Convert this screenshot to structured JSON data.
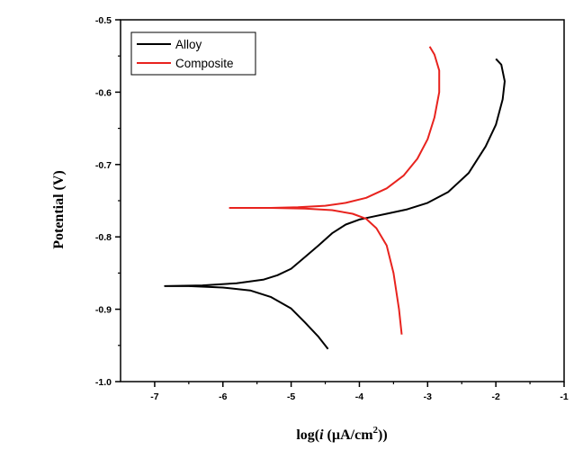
{
  "chart_data": {
    "type": "line",
    "title": "",
    "xlabel": {
      "prefix": "log(",
      "italic": "i",
      "mid": " (µA/cm",
      "sup": "2",
      "suffix": "))"
    },
    "ylabel": "Potential (V)",
    "xlim": [
      -7.5,
      -1
    ],
    "ylim": [
      -1.0,
      -0.5
    ],
    "x_ticks": [
      "-7",
      "-6",
      "-5",
      "-4",
      "-3",
      "-2",
      "-1"
    ],
    "x_tick_values": [
      -7,
      -6,
      -5,
      -4,
      -3,
      -2,
      -1
    ],
    "y_ticks": [
      "-0.5",
      "-0.6",
      "-0.7",
      "-0.8",
      "-0.9",
      "-1.0"
    ],
    "y_tick_values": [
      -0.5,
      -0.6,
      -0.7,
      -0.8,
      -0.9,
      -1.0
    ],
    "grid": false,
    "legend_position": "top-left",
    "series": [
      {
        "name": "Alloy",
        "color": "#000000",
        "points": [
          [
            -4.46,
            -0.955
          ],
          [
            -4.6,
            -0.938
          ],
          [
            -4.8,
            -0.918
          ],
          [
            -5.0,
            -0.899
          ],
          [
            -5.3,
            -0.883
          ],
          [
            -5.6,
            -0.874
          ],
          [
            -6.0,
            -0.87
          ],
          [
            -6.5,
            -0.868
          ],
          [
            -6.85,
            -0.868
          ],
          [
            -6.3,
            -0.867
          ],
          [
            -5.8,
            -0.864
          ],
          [
            -5.4,
            -0.859
          ],
          [
            -5.2,
            -0.853
          ],
          [
            -5.0,
            -0.844
          ],
          [
            -4.8,
            -0.828
          ],
          [
            -4.6,
            -0.812
          ],
          [
            -4.4,
            -0.795
          ],
          [
            -4.2,
            -0.783
          ],
          [
            -4.0,
            -0.776
          ],
          [
            -3.8,
            -0.772
          ],
          [
            -3.6,
            -0.768
          ],
          [
            -3.3,
            -0.762
          ],
          [
            -3.0,
            -0.753
          ],
          [
            -2.7,
            -0.738
          ],
          [
            -2.4,
            -0.712
          ],
          [
            -2.15,
            -0.675
          ],
          [
            -2.0,
            -0.645
          ],
          [
            -1.9,
            -0.61
          ],
          [
            -1.87,
            -0.585
          ],
          [
            -1.92,
            -0.562
          ],
          [
            -2.0,
            -0.554
          ]
        ]
      },
      {
        "name": "Composite",
        "color": "#e8231e",
        "points": [
          [
            -3.38,
            -0.935
          ],
          [
            -3.42,
            -0.9
          ],
          [
            -3.5,
            -0.85
          ],
          [
            -3.6,
            -0.812
          ],
          [
            -3.75,
            -0.788
          ],
          [
            -3.9,
            -0.775
          ],
          [
            -4.1,
            -0.768
          ],
          [
            -4.4,
            -0.763
          ],
          [
            -4.8,
            -0.761
          ],
          [
            -5.3,
            -0.76
          ],
          [
            -5.9,
            -0.76
          ],
          [
            -5.3,
            -0.76
          ],
          [
            -4.9,
            -0.759
          ],
          [
            -4.5,
            -0.757
          ],
          [
            -4.2,
            -0.753
          ],
          [
            -3.9,
            -0.746
          ],
          [
            -3.6,
            -0.733
          ],
          [
            -3.35,
            -0.715
          ],
          [
            -3.15,
            -0.692
          ],
          [
            -3.0,
            -0.665
          ],
          [
            -2.9,
            -0.635
          ],
          [
            -2.83,
            -0.6
          ],
          [
            -2.83,
            -0.57
          ],
          [
            -2.9,
            -0.548
          ],
          [
            -2.97,
            -0.537
          ]
        ]
      }
    ]
  }
}
